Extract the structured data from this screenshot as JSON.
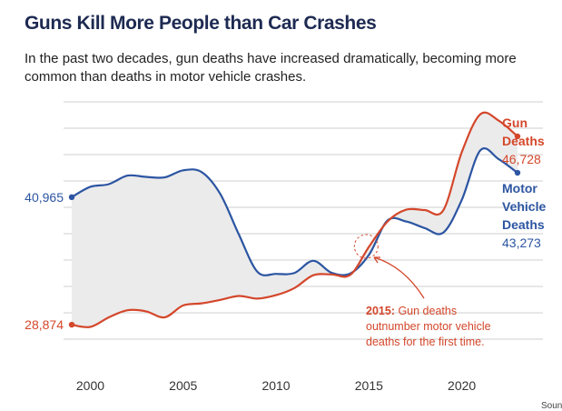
{
  "header": {
    "title": "Guns Kill More People than Car Crashes",
    "subtitle": "In the past two decades, gun deaths have increased dramatically, becoming more common than deaths in motor vehicle crashes."
  },
  "chart_data": {
    "type": "line",
    "title": "Guns Kill More People than Car Crashes",
    "subtitle": "In the past two decades, gun deaths have increased dramatically, becoming more common than deaths in motor vehicle crashes.",
    "xlabel": "",
    "ylabel": "",
    "xlim": [
      1999,
      2023
    ],
    "ylim": [
      25000,
      50000
    ],
    "x_ticks": [
      2000,
      2005,
      2010,
      2015,
      2020
    ],
    "x_tick_labels": [
      "2000",
      "2005",
      "2010",
      "2015",
      "2020"
    ],
    "grid": "horizontal",
    "shaded_region": "between series",
    "x": [
      1999,
      2000,
      2001,
      2002,
      2003,
      2004,
      2005,
      2006,
      2007,
      2008,
      2009,
      2010,
      2011,
      2012,
      2013,
      2014,
      2015,
      2016,
      2017,
      2018,
      2019,
      2020,
      2021,
      2022,
      2023
    ],
    "series": [
      {
        "name": "Gun Deaths",
        "color": "#d4472b",
        "values": [
          28874,
          28663,
          29573,
          30242,
          30136,
          29569,
          30694,
          30896,
          31224,
          31593,
          31347,
          31672,
          32351,
          33563,
          33636,
          33599,
          36252,
          38658,
          39773,
          39740,
          39707,
          45222,
          48830,
          48204,
          46728
        ],
        "end_label": [
          "Gun",
          "Deaths"
        ],
        "end_value_label": "46,728",
        "start_value_label": "28,874"
      },
      {
        "name": "Motor Vehicle Deaths",
        "color": "#2c55a2",
        "values": [
          40965,
          41945,
          42196,
          43005,
          42884,
          42836,
          43510,
          43336,
          41259,
          37423,
          33883,
          33687,
          33783,
          34935,
          33782,
          33736,
          35484,
          38748,
          38659,
          38036,
          37595,
          40698,
          45404,
          44552,
          43273
        ],
        "end_label": [
          "Motor",
          "Vehicle",
          "Deaths"
        ],
        "end_value_label": "43,273",
        "start_value_label": "40,965"
      }
    ],
    "annotations": [
      {
        "x": 2015,
        "title": "2015:",
        "lines": [
          " Gun deaths",
          "outnumber motor vehicle",
          "deaths for the first time."
        ]
      }
    ],
    "source_text": "Soun"
  }
}
